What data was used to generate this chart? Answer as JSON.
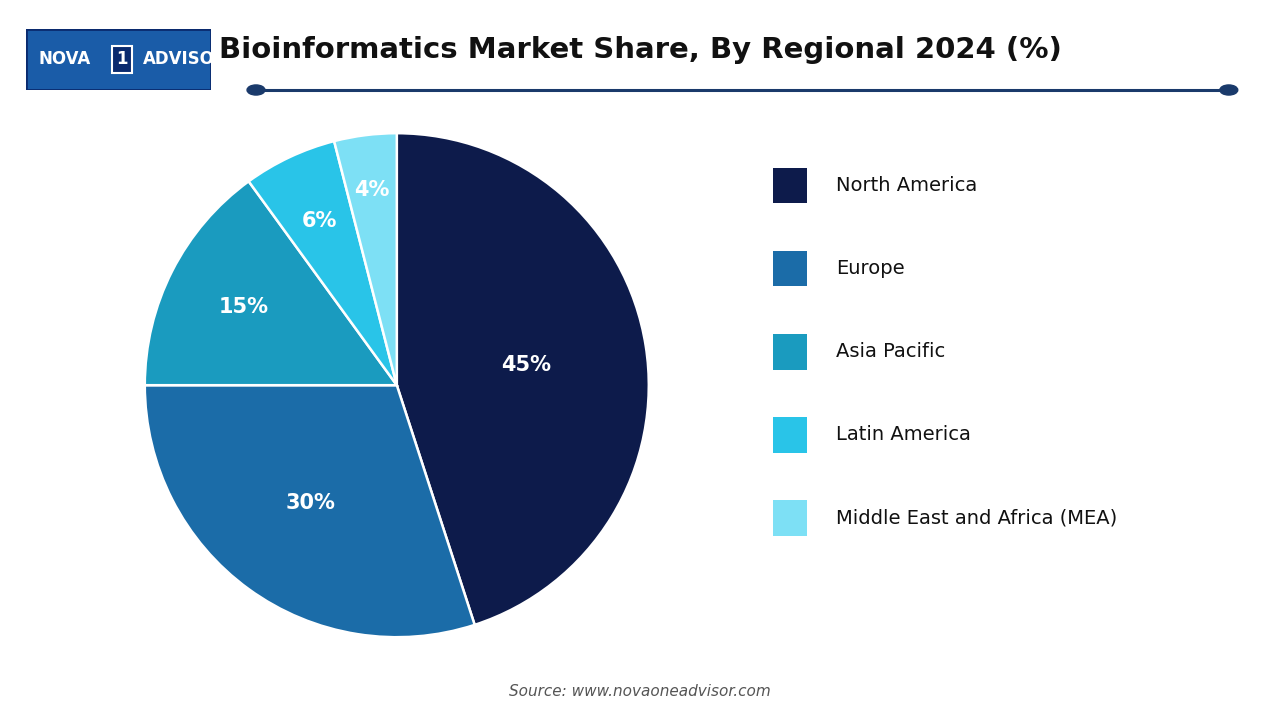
{
  "title": "Bioinformatics Market Share, By Regional 2024 (%)",
  "labels": [
    "North America",
    "Europe",
    "Asia Pacific",
    "Latin America",
    "Middle East and Africa (MEA)"
  ],
  "values": [
    45,
    30,
    15,
    6,
    4
  ],
  "colors": [
    "#0d1b4b",
    "#1b6ca8",
    "#1a9bbf",
    "#29c4e8",
    "#7de0f5"
  ],
  "text_color": "#ffffff",
  "source_text": "Source: www.novaoneadvisor.com",
  "bg_color": "#ffffff",
  "line_color": "#1a3a6b"
}
